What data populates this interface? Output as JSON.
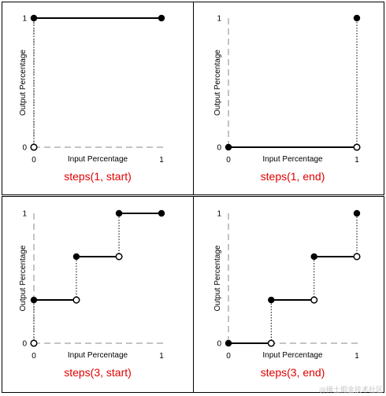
{
  "chart_data": [
    {
      "type": "line",
      "title": "steps(1, start)",
      "xlabel": "Input Percentage",
      "ylabel": "Output Percentage",
      "xlim": [
        0,
        1
      ],
      "ylim": [
        0,
        1
      ],
      "x_ticks": [
        "0",
        "1"
      ],
      "y_ticks": [
        "0",
        "1"
      ],
      "segments": [
        {
          "x": [
            0,
            1
          ],
          "y": [
            1,
            1
          ]
        }
      ],
      "filled_points": [
        {
          "x": 0,
          "y": 1
        },
        {
          "x": 1,
          "y": 1
        }
      ],
      "open_points": [
        {
          "x": 0,
          "y": 0
        }
      ],
      "jumps": [
        {
          "x": 0,
          "y": [
            0,
            1
          ]
        }
      ]
    },
    {
      "type": "line",
      "title": "steps(1, end)",
      "xlabel": "Input Percentage",
      "ylabel": "Output Percentage",
      "xlim": [
        0,
        1
      ],
      "ylim": [
        0,
        1
      ],
      "x_ticks": [
        "0",
        "1"
      ],
      "y_ticks": [
        "0",
        "1"
      ],
      "segments": [
        {
          "x": [
            0,
            1
          ],
          "y": [
            0,
            0
          ]
        }
      ],
      "filled_points": [
        {
          "x": 0,
          "y": 0
        },
        {
          "x": 1,
          "y": 1
        }
      ],
      "open_points": [
        {
          "x": 1,
          "y": 0
        }
      ],
      "jumps": [
        {
          "x": 1,
          "y": [
            0,
            1
          ]
        }
      ]
    },
    {
      "type": "line",
      "title": "steps(3, start)",
      "xlabel": "Input Percentage",
      "ylabel": "Output Percentage",
      "xlim": [
        0,
        1
      ],
      "ylim": [
        0,
        1
      ],
      "x_ticks": [
        "0",
        "1"
      ],
      "y_ticks": [
        "0",
        "1"
      ],
      "segments": [
        {
          "x": [
            0,
            0.333
          ],
          "y": [
            0.333,
            0.333
          ]
        },
        {
          "x": [
            0.333,
            0.667
          ],
          "y": [
            0.667,
            0.667
          ]
        },
        {
          "x": [
            0.667,
            1
          ],
          "y": [
            1,
            1
          ]
        }
      ],
      "filled_points": [
        {
          "x": 0,
          "y": 0.333
        },
        {
          "x": 0.333,
          "y": 0.667
        },
        {
          "x": 0.667,
          "y": 1
        },
        {
          "x": 1,
          "y": 1
        }
      ],
      "open_points": [
        {
          "x": 0,
          "y": 0
        },
        {
          "x": 0.333,
          "y": 0.333
        },
        {
          "x": 0.667,
          "y": 0.667
        }
      ],
      "jumps": [
        {
          "x": 0,
          "y": [
            0,
            0.333
          ]
        },
        {
          "x": 0.333,
          "y": [
            0.333,
            0.667
          ]
        },
        {
          "x": 0.667,
          "y": [
            0.667,
            1
          ]
        }
      ]
    },
    {
      "type": "line",
      "title": "steps(3, end)",
      "xlabel": "Input Percentage",
      "ylabel": "Output Percentage",
      "xlim": [
        0,
        1
      ],
      "ylim": [
        0,
        1
      ],
      "x_ticks": [
        "0",
        "1"
      ],
      "y_ticks": [
        "0",
        "1"
      ],
      "segments": [
        {
          "x": [
            0,
            0.333
          ],
          "y": [
            0,
            0
          ]
        },
        {
          "x": [
            0.333,
            0.667
          ],
          "y": [
            0.333,
            0.333
          ]
        },
        {
          "x": [
            0.667,
            1
          ],
          "y": [
            0.667,
            0.667
          ]
        }
      ],
      "filled_points": [
        {
          "x": 0,
          "y": 0
        },
        {
          "x": 0.333,
          "y": 0.333
        },
        {
          "x": 0.667,
          "y": 0.667
        },
        {
          "x": 1,
          "y": 1
        }
      ],
      "open_points": [
        {
          "x": 0.333,
          "y": 0
        },
        {
          "x": 0.667,
          "y": 0.333
        },
        {
          "x": 1,
          "y": 0.667
        }
      ],
      "jumps": [
        {
          "x": 0.333,
          "y": [
            0,
            0.333
          ]
        },
        {
          "x": 0.667,
          "y": [
            0.333,
            0.667
          ]
        },
        {
          "x": 1,
          "y": [
            0.667,
            1
          ]
        }
      ]
    }
  ],
  "watermark": "@稀土掘金技术社区"
}
